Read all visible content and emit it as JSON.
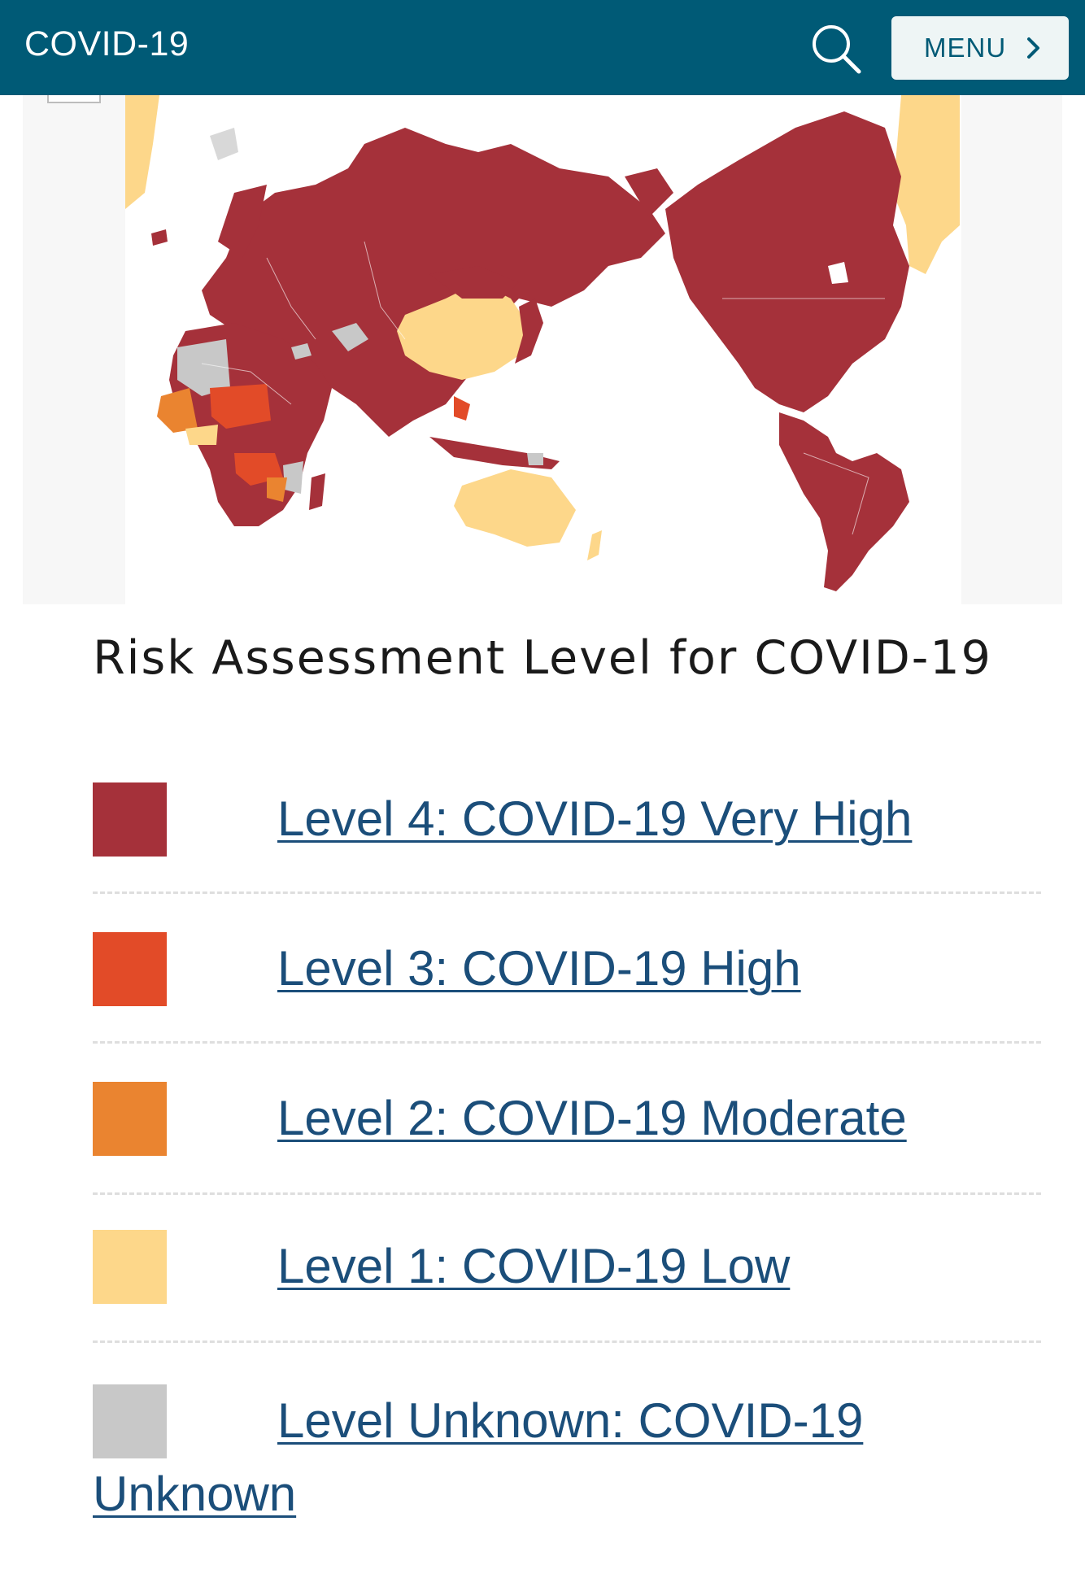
{
  "header": {
    "title": "COVID-19",
    "search_icon": "search-icon",
    "menu_label": "MENU",
    "menu_icon": "chevron-right-icon",
    "background_color": "#005a76"
  },
  "map": {
    "background_color": "#f7f7f7"
  },
  "legend": {
    "title": "Risk Assessment Level for COVID-19",
    "levels": [
      {
        "label": "Level 4: COVID-19 Very High",
        "color": "#a5313a"
      },
      {
        "label": "Level 3: COVID-19 High",
        "color": "#e24b28"
      },
      {
        "label": "Level 2: COVID-19 Moderate",
        "color": "#ea8430"
      },
      {
        "label": "Level 1: COVID-19 Low",
        "color": "#fdd78a"
      },
      {
        "label": "Level Unknown: COVID-19",
        "label_cont": "Unknown",
        "color": "#c8c8c8"
      }
    ]
  }
}
